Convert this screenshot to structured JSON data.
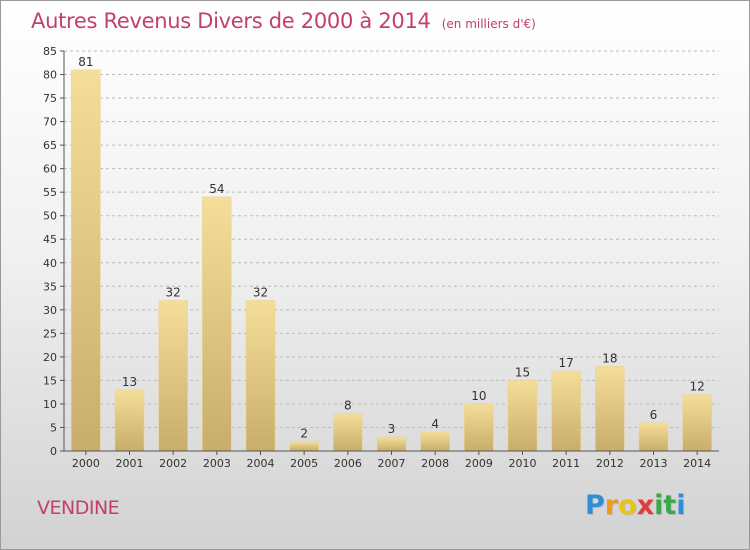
{
  "title": "Autres Revenus Divers de 2000 à 2014",
  "subtitle": "(en milliers d'€)",
  "commune": "VENDINE",
  "brand": {
    "letters": [
      "P",
      "r",
      "o",
      "x",
      "i",
      "t",
      "i"
    ],
    "colors": [
      "#2f8fd6",
      "#f09a1a",
      "#e8c41a",
      "#e23b3b",
      "#3aa84a",
      "#3aa84a",
      "#2f8fd6"
    ]
  },
  "colors": {
    "bar_light": "#f5de9a",
    "bar_dark": "#c8ad6b",
    "title": "#c2406b",
    "axis": "#555555",
    "grid": "#bbbbbb"
  },
  "chart_data": {
    "type": "bar",
    "categories": [
      "2000",
      "2001",
      "2002",
      "2003",
      "2004",
      "2005",
      "2006",
      "2007",
      "2008",
      "2009",
      "2010",
      "2011",
      "2012",
      "2013",
      "2014"
    ],
    "values": [
      81,
      13,
      32,
      54,
      32,
      2,
      8,
      3,
      4,
      10,
      15,
      17,
      18,
      6,
      12
    ],
    "title": "Autres Revenus Divers de 2000 à 2014",
    "subtitle": "(en milliers d'€)",
    "xlabel": "",
    "ylabel": "",
    "ylim": [
      0,
      85
    ],
    "yticks": [
      0,
      5,
      10,
      15,
      20,
      25,
      30,
      35,
      40,
      45,
      50,
      55,
      60,
      65,
      70,
      75,
      80,
      85
    ],
    "grid": true,
    "data_labels": true
  }
}
